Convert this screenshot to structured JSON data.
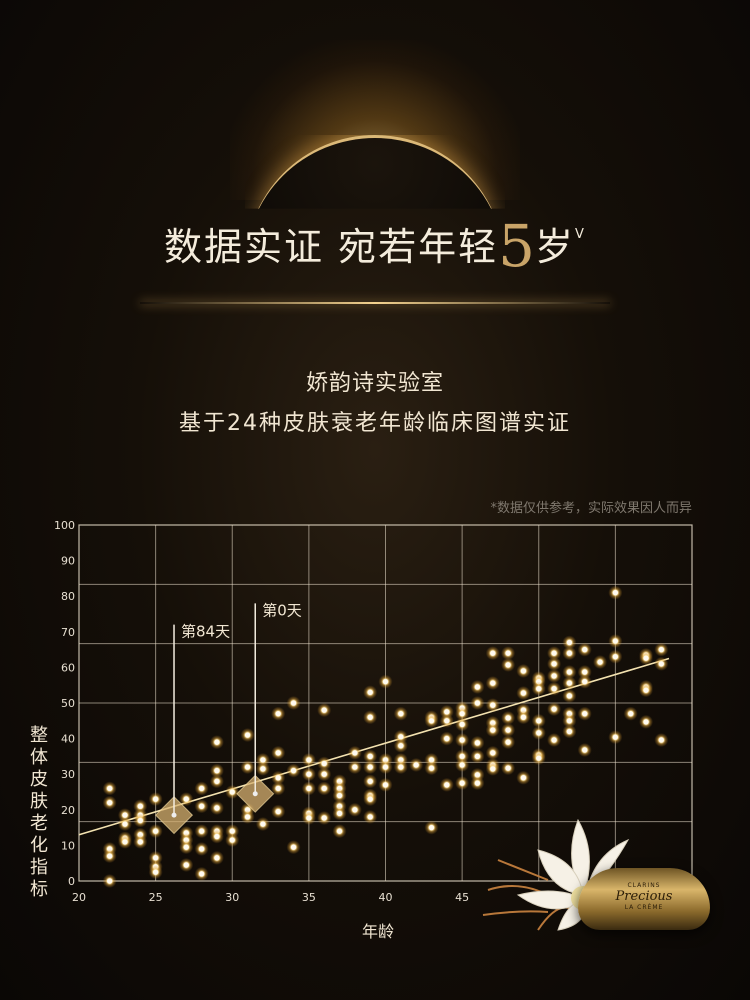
{
  "header": {
    "headline_main": "数据实证 宛若年轻",
    "headline_number": "5",
    "headline_unit": "岁",
    "headline_mark": "V",
    "subtitle_line1": "娇韵诗实验室",
    "subtitle_line2": "基于24种皮肤衰老年龄临床图谱实证",
    "disclaimer": "*数据仅供参考，实际效果因人而异"
  },
  "product": {
    "brand": "CLARINS",
    "name": "Precious",
    "variant": "LA CRÈME"
  },
  "colors": {
    "accent_gold": "#c9a468",
    "dot": "#fff3c8",
    "background": "#120d08"
  },
  "chart_data": {
    "type": "scatter",
    "xlabel": "年龄",
    "ylabel": "整体皮肤老化指标",
    "xlim": [
      20,
      60
    ],
    "ylim": [
      0,
      100
    ],
    "x_ticks": [
      "20",
      "25",
      "30",
      "35",
      "40",
      "45"
    ],
    "y_ticks": [
      "0",
      "10",
      "20",
      "30",
      "40",
      "50",
      "60",
      "70",
      "80",
      "90",
      "100"
    ],
    "grid": true,
    "trendline": {
      "from": [
        20,
        13
      ],
      "to": [
        58.5,
        62.5
      ]
    },
    "annotations": [
      {
        "label": "第84天",
        "x": 26.2,
        "y": 18.5,
        "label_y": 72
      },
      {
        "label": "第0天",
        "x": 31.5,
        "y": 24.5,
        "label_y": 78
      }
    ],
    "points": [
      [
        22,
        26
      ],
      [
        22,
        22
      ],
      [
        22,
        9
      ],
      [
        22,
        7
      ],
      [
        22,
        0
      ],
      [
        23,
        18.5
      ],
      [
        23,
        16
      ],
      [
        23,
        12
      ],
      [
        23,
        11
      ],
      [
        24,
        21
      ],
      [
        24,
        18.5
      ],
      [
        24,
        17
      ],
      [
        24,
        13
      ],
      [
        24,
        11
      ],
      [
        25,
        23
      ],
      [
        25,
        14
      ],
      [
        25,
        6.5
      ],
      [
        25,
        4
      ],
      [
        25,
        2.5
      ],
      [
        27,
        23
      ],
      [
        27,
        13.5
      ],
      [
        27,
        11.5
      ],
      [
        27,
        9.5
      ],
      [
        27,
        4.5
      ],
      [
        28,
        26
      ],
      [
        28,
        21
      ],
      [
        28,
        14
      ],
      [
        28,
        9
      ],
      [
        28,
        2
      ],
      [
        29,
        39
      ],
      [
        29,
        31
      ],
      [
        29,
        28
      ],
      [
        29,
        20.5
      ],
      [
        29,
        14
      ],
      [
        29,
        12.5
      ],
      [
        29,
        6.5
      ],
      [
        30,
        25
      ],
      [
        30,
        14
      ],
      [
        30,
        11.5
      ],
      [
        31,
        41
      ],
      [
        31,
        32
      ],
      [
        31,
        20
      ],
      [
        31,
        18
      ],
      [
        32,
        34
      ],
      [
        32,
        31.5
      ],
      [
        32,
        16
      ],
      [
        33,
        47
      ],
      [
        33,
        36
      ],
      [
        33,
        29
      ],
      [
        33,
        26
      ],
      [
        33,
        19.5
      ],
      [
        34,
        50
      ],
      [
        34,
        31
      ],
      [
        34,
        9.5
      ],
      [
        35,
        34
      ],
      [
        35,
        30
      ],
      [
        35,
        26
      ],
      [
        35,
        19
      ],
      [
        35,
        17.7
      ],
      [
        36,
        48
      ],
      [
        36,
        33
      ],
      [
        36,
        30
      ],
      [
        36,
        26
      ],
      [
        36,
        17.7
      ],
      [
        37,
        28
      ],
      [
        37,
        26
      ],
      [
        37,
        24
      ],
      [
        37,
        21
      ],
      [
        37,
        19
      ],
      [
        37,
        14
      ],
      [
        38,
        36
      ],
      [
        38,
        32
      ],
      [
        38,
        20
      ],
      [
        39,
        53
      ],
      [
        39,
        46
      ],
      [
        39,
        35
      ],
      [
        39,
        32
      ],
      [
        39,
        28
      ],
      [
        39,
        24
      ],
      [
        39,
        23
      ],
      [
        39,
        18
      ],
      [
        40,
        56
      ],
      [
        40,
        34
      ],
      [
        40,
        32
      ],
      [
        40,
        27
      ],
      [
        41,
        47
      ],
      [
        41,
        40.5
      ],
      [
        41,
        38
      ],
      [
        41,
        34
      ],
      [
        41,
        32
      ],
      [
        42,
        32.6
      ],
      [
        43,
        46
      ],
      [
        43,
        45
      ],
      [
        43,
        34
      ],
      [
        43,
        31.7
      ],
      [
        43,
        15
      ],
      [
        44,
        47.5
      ],
      [
        44,
        45
      ],
      [
        44,
        40
      ],
      [
        44,
        27
      ],
      [
        45,
        48.6
      ],
      [
        45,
        47
      ],
      [
        45,
        44
      ],
      [
        45,
        39.6
      ],
      [
        45,
        35
      ],
      [
        45,
        32.6
      ],
      [
        45,
        27.5
      ],
      [
        46,
        54.5
      ],
      [
        46,
        50
      ],
      [
        46,
        38.8
      ],
      [
        46,
        35
      ],
      [
        46,
        29.8
      ],
      [
        46,
        27.5
      ],
      [
        47,
        64
      ],
      [
        47,
        55.6
      ],
      [
        47,
        49.4
      ],
      [
        47,
        44.4
      ],
      [
        47,
        42.4
      ],
      [
        47,
        36
      ],
      [
        47,
        32.6
      ],
      [
        47,
        31.5
      ],
      [
        48,
        64
      ],
      [
        48,
        60.7
      ],
      [
        48,
        45.8
      ],
      [
        48,
        42.4
      ],
      [
        48,
        39
      ],
      [
        48,
        31.7
      ],
      [
        49,
        59
      ],
      [
        49,
        52.8
      ],
      [
        49,
        48
      ],
      [
        49,
        46
      ],
      [
        49,
        29
      ],
      [
        50,
        57
      ],
      [
        50,
        56
      ],
      [
        50,
        54
      ],
      [
        50,
        45
      ],
      [
        50,
        41.6
      ],
      [
        50,
        35.4
      ],
      [
        50,
        34.5
      ],
      [
        51,
        64
      ],
      [
        51,
        61
      ],
      [
        51,
        57.6
      ],
      [
        51,
        54
      ],
      [
        51,
        48.3
      ],
      [
        51,
        39.6
      ],
      [
        52,
        67
      ],
      [
        52,
        64
      ],
      [
        52,
        58.7
      ],
      [
        52,
        55.6
      ],
      [
        52,
        52
      ],
      [
        52,
        47
      ],
      [
        52,
        45
      ],
      [
        52,
        42
      ],
      [
        53,
        65
      ],
      [
        53,
        58.7
      ],
      [
        53,
        56
      ],
      [
        53,
        47
      ],
      [
        53,
        36.8
      ],
      [
        54,
        61.5
      ],
      [
        55,
        81
      ],
      [
        55,
        67.4
      ],
      [
        55,
        63
      ],
      [
        55,
        40.4
      ],
      [
        56,
        47
      ],
      [
        57,
        63.5
      ],
      [
        57,
        62.6
      ],
      [
        57,
        54.5
      ],
      [
        57,
        53.6
      ],
      [
        57,
        44.7
      ],
      [
        58,
        65
      ],
      [
        58,
        61
      ],
      [
        58,
        39.6
      ]
    ]
  }
}
